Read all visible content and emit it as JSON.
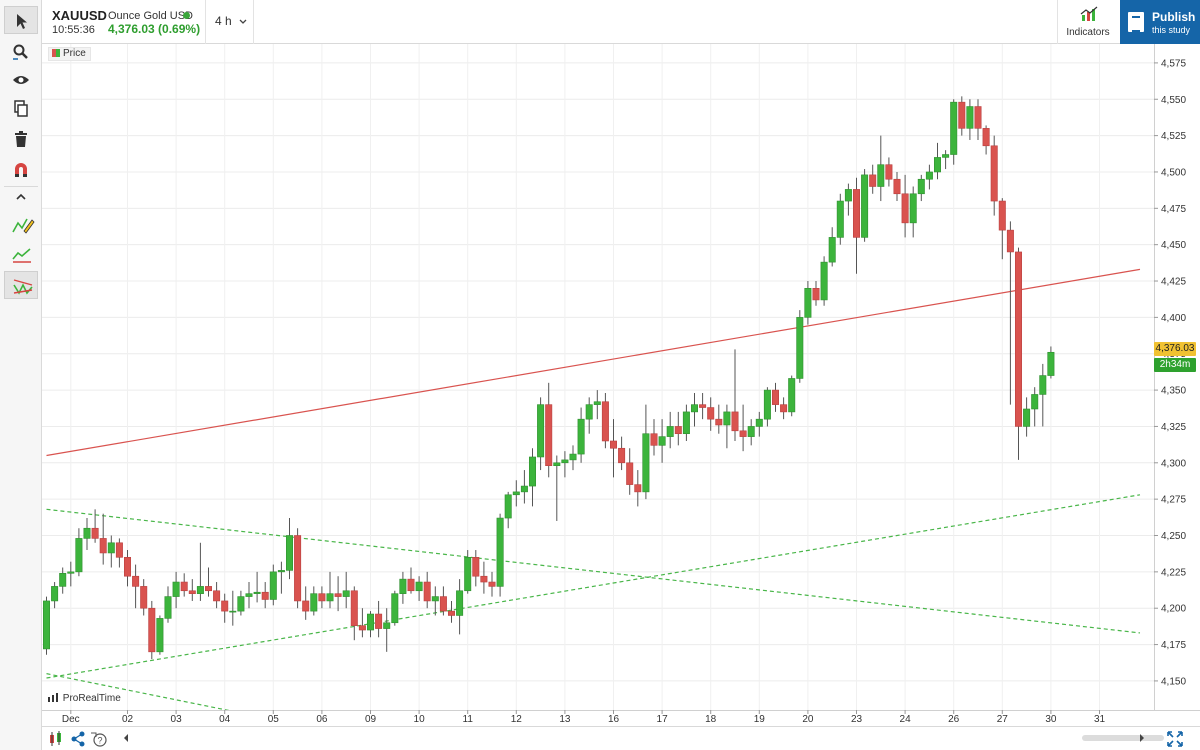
{
  "header": {
    "symbol": "XAUUSD",
    "instrument_name": "Ounce Gold USD",
    "time": "10:55:36",
    "last_price_change": "4,376.03 (0.69%)",
    "timeframe": "4 h",
    "indicators_label": "Indicators",
    "publish_label": "Publish",
    "publish_sublabel": "this study"
  },
  "toolbar": {
    "tools": [
      "cursor-icon",
      "zoom-icon",
      "eye-icon",
      "copy-icon",
      "trash-icon",
      "magnet-icon",
      "collapse-chevron-icon",
      "pencil-drawing-icon",
      "trend-line-icon",
      "pattern-tool-icon"
    ]
  },
  "legend": {
    "price_label": "Price"
  },
  "watermark": "ProRealTime",
  "price_tag": "4,376.03",
  "countdown_tag": "2h34m",
  "colors": {
    "up": "#3cb43c",
    "down": "#d9534f",
    "trendline": "#d9534f",
    "channel": "#49b649",
    "accent": "#1565a8"
  },
  "chart_data": {
    "type": "candlestick",
    "title": "",
    "xlabel": "",
    "ylabel": "",
    "ylim": [
      4130,
      4588
    ],
    "yticks": [
      "4,150",
      "4,175",
      "4,200",
      "4,225",
      "4,250",
      "4,275",
      "4,300",
      "4,325",
      "4,350",
      "4,375",
      "4,400",
      "4,425",
      "4,450",
      "4,475",
      "4,500",
      "4,525",
      "4,550",
      "4,575"
    ],
    "ytick_values": [
      4150,
      4175,
      4200,
      4225,
      4250,
      4275,
      4300,
      4325,
      4350,
      4375,
      4400,
      4425,
      4450,
      4475,
      4500,
      4525,
      4550,
      4575
    ],
    "xticks": [
      {
        "label": "Dec",
        "bar": 3
      },
      {
        "label": "02",
        "bar": 10
      },
      {
        "label": "03",
        "bar": 16
      },
      {
        "label": "04",
        "bar": 22
      },
      {
        "label": "05",
        "bar": 28
      },
      {
        "label": "06",
        "bar": 34
      },
      {
        "label": "09",
        "bar": 40
      },
      {
        "label": "10",
        "bar": 46
      },
      {
        "label": "11",
        "bar": 52
      },
      {
        "label": "12",
        "bar": 58
      },
      {
        "label": "13",
        "bar": 64
      },
      {
        "label": "16",
        "bar": 70
      },
      {
        "label": "17",
        "bar": 76
      },
      {
        "label": "18",
        "bar": 82
      },
      {
        "label": "19",
        "bar": 88
      },
      {
        "label": "20",
        "bar": 94
      },
      {
        "label": "23",
        "bar": 100
      },
      {
        "label": "24",
        "bar": 106
      },
      {
        "label": "26",
        "bar": 112
      },
      {
        "label": "27",
        "bar": 118
      },
      {
        "label": "30",
        "bar": 124
      },
      {
        "label": "31",
        "bar": 130
      }
    ],
    "ohlc": [
      [
        4172,
        4208,
        4168,
        4205
      ],
      [
        4205,
        4218,
        4200,
        4215
      ],
      [
        4215,
        4228,
        4210,
        4224
      ],
      [
        4224,
        4232,
        4215,
        4225
      ],
      [
        4225,
        4255,
        4222,
        4248
      ],
      [
        4248,
        4262,
        4240,
        4255
      ],
      [
        4255,
        4268,
        4245,
        4248
      ],
      [
        4248,
        4265,
        4230,
        4238
      ],
      [
        4238,
        4250,
        4228,
        4245
      ],
      [
        4245,
        4248,
        4228,
        4235
      ],
      [
        4235,
        4240,
        4215,
        4222
      ],
      [
        4222,
        4230,
        4200,
        4215
      ],
      [
        4215,
        4220,
        4195,
        4200
      ],
      [
        4200,
        4205,
        4165,
        4170
      ],
      [
        4170,
        4195,
        4168,
        4193
      ],
      [
        4193,
        4215,
        4190,
        4208
      ],
      [
        4208,
        4225,
        4200,
        4218
      ],
      [
        4218,
        4224,
        4208,
        4212
      ],
      [
        4212,
        4220,
        4205,
        4210
      ],
      [
        4210,
        4245,
        4205,
        4215
      ],
      [
        4215,
        4228,
        4208,
        4212
      ],
      [
        4212,
        4218,
        4200,
        4205
      ],
      [
        4205,
        4210,
        4190,
        4198
      ],
      [
        4198,
        4212,
        4188,
        4198
      ],
      [
        4198,
        4212,
        4195,
        4208
      ],
      [
        4208,
        4218,
        4200,
        4210
      ],
      [
        4210,
        4225,
        4204,
        4211
      ],
      [
        4211,
        4218,
        4200,
        4206
      ],
      [
        4206,
        4230,
        4202,
        4225
      ],
      [
        4225,
        4232,
        4210,
        4226
      ],
      [
        4226,
        4262,
        4220,
        4250
      ],
      [
        4250,
        4255,
        4200,
        4205
      ],
      [
        4205,
        4215,
        4192,
        4198
      ],
      [
        4198,
        4215,
        4195,
        4210
      ],
      [
        4210,
        4215,
        4200,
        4205
      ],
      [
        4205,
        4225,
        4200,
        4210
      ],
      [
        4210,
        4222,
        4198,
        4208
      ],
      [
        4208,
        4225,
        4200,
        4212
      ],
      [
        4212,
        4215,
        4178,
        4188
      ],
      [
        4188,
        4200,
        4180,
        4185
      ],
      [
        4185,
        4198,
        4180,
        4196
      ],
      [
        4196,
        4205,
        4180,
        4186
      ],
      [
        4186,
        4200,
        4170,
        4190
      ],
      [
        4190,
        4212,
        4188,
        4210
      ],
      [
        4210,
        4225,
        4203,
        4220
      ],
      [
        4220,
        4228,
        4210,
        4212
      ],
      [
        4212,
        4222,
        4205,
        4218
      ],
      [
        4218,
        4225,
        4200,
        4205
      ],
      [
        4205,
        4215,
        4195,
        4208
      ],
      [
        4208,
        4215,
        4195,
        4198
      ],
      [
        4198,
        4205,
        4190,
        4195
      ],
      [
        4195,
        4220,
        4182,
        4212
      ],
      [
        4212,
        4240,
        4210,
        4235
      ],
      [
        4235,
        4240,
        4215,
        4222
      ],
      [
        4222,
        4232,
        4210,
        4218
      ],
      [
        4218,
        4225,
        4208,
        4215
      ],
      [
        4215,
        4265,
        4208,
        4262
      ],
      [
        4262,
        4280,
        4255,
        4278
      ],
      [
        4278,
        4288,
        4270,
        4280
      ],
      [
        4280,
        4295,
        4272,
        4284
      ],
      [
        4284,
        4310,
        4270,
        4304
      ],
      [
        4304,
        4345,
        4295,
        4340
      ],
      [
        4340,
        4355,
        4290,
        4298
      ],
      [
        4298,
        4305,
        4260,
        4300
      ],
      [
        4300,
        4308,
        4290,
        4302
      ],
      [
        4302,
        4312,
        4295,
        4306
      ],
      [
        4306,
        4338,
        4300,
        4330
      ],
      [
        4330,
        4345,
        4320,
        4340
      ],
      [
        4340,
        4350,
        4330,
        4342
      ],
      [
        4342,
        4348,
        4310,
        4315
      ],
      [
        4315,
        4330,
        4290,
        4310
      ],
      [
        4310,
        4318,
        4295,
        4300
      ],
      [
        4300,
        4310,
        4278,
        4285
      ],
      [
        4285,
        4295,
        4270,
        4280
      ],
      [
        4280,
        4340,
        4275,
        4320
      ],
      [
        4320,
        4330,
        4305,
        4312
      ],
      [
        4312,
        4330,
        4300,
        4318
      ],
      [
        4318,
        4335,
        4310,
        4325
      ],
      [
        4325,
        4335,
        4312,
        4320
      ],
      [
        4320,
        4340,
        4315,
        4335
      ],
      [
        4335,
        4348,
        4325,
        4340
      ],
      [
        4340,
        4348,
        4330,
        4338
      ],
      [
        4338,
        4345,
        4322,
        4330
      ],
      [
        4330,
        4340,
        4320,
        4326
      ],
      [
        4326,
        4340,
        4310,
        4335
      ],
      [
        4335,
        4378,
        4315,
        4322
      ],
      [
        4322,
        4340,
        4308,
        4318
      ],
      [
        4318,
        4330,
        4312,
        4325
      ],
      [
        4325,
        4335,
        4318,
        4330
      ],
      [
        4330,
        4352,
        4325,
        4350
      ],
      [
        4350,
        4355,
        4335,
        4340
      ],
      [
        4340,
        4345,
        4330,
        4335
      ],
      [
        4335,
        4360,
        4332,
        4358
      ],
      [
        4358,
        4405,
        4355,
        4400
      ],
      [
        4400,
        4425,
        4395,
        4420
      ],
      [
        4420,
        4425,
        4408,
        4412
      ],
      [
        4412,
        4442,
        4408,
        4438
      ],
      [
        4438,
        4462,
        4435,
        4455
      ],
      [
        4455,
        4485,
        4450,
        4480
      ],
      [
        4480,
        4492,
        4470,
        4488
      ],
      [
        4488,
        4496,
        4430,
        4455
      ],
      [
        4455,
        4502,
        4452,
        4498
      ],
      [
        4498,
        4505,
        4485,
        4490
      ],
      [
        4490,
        4525,
        4480,
        4505
      ],
      [
        4505,
        4510,
        4490,
        4495
      ],
      [
        4495,
        4500,
        4480,
        4485
      ],
      [
        4485,
        4498,
        4455,
        4465
      ],
      [
        4465,
        4490,
        4455,
        4485
      ],
      [
        4485,
        4498,
        4480,
        4495
      ],
      [
        4495,
        4505,
        4488,
        4500
      ],
      [
        4500,
        4520,
        4495,
        4510
      ],
      [
        4510,
        4515,
        4502,
        4512
      ],
      [
        4512,
        4550,
        4505,
        4548
      ],
      [
        4548,
        4552,
        4525,
        4530
      ],
      [
        4530,
        4550,
        4522,
        4545
      ],
      [
        4545,
        4550,
        4522,
        4530
      ],
      [
        4530,
        4532,
        4512,
        4518
      ],
      [
        4518,
        4525,
        4470,
        4480
      ],
      [
        4480,
        4482,
        4440,
        4460
      ],
      [
        4460,
        4466,
        4340,
        4445
      ],
      [
        4445,
        4448,
        4302,
        4325
      ],
      [
        4325,
        4345,
        4318,
        4337
      ],
      [
        4337,
        4352,
        4325,
        4347
      ],
      [
        4347,
        4368,
        4325,
        4360
      ],
      [
        4360,
        4380,
        4358,
        4376
      ]
    ],
    "lines": [
      {
        "name": "trendline",
        "style": "solid",
        "color": "#d9534f",
        "from": {
          "bar": 0,
          "price": 4305
        },
        "to": {
          "bar": 135,
          "price": 4433
        }
      },
      {
        "name": "channel-upper",
        "style": "dashed",
        "color": "#49b649",
        "from": {
          "bar": 0,
          "price": 4268
        },
        "to": {
          "bar": 135,
          "price": 4183
        }
      },
      {
        "name": "channel-lower",
        "style": "dashed",
        "color": "#49b649",
        "from": {
          "bar": 0,
          "price": 4152
        },
        "to": {
          "bar": 135,
          "price": 4278
        }
      },
      {
        "name": "channel-lower-2",
        "style": "dashed",
        "color": "#49b649",
        "from": {
          "bar": 0,
          "price": 4155
        },
        "to": {
          "bar": 24,
          "price": 4128
        }
      }
    ],
    "grid": true,
    "legend_position": "top-left"
  }
}
